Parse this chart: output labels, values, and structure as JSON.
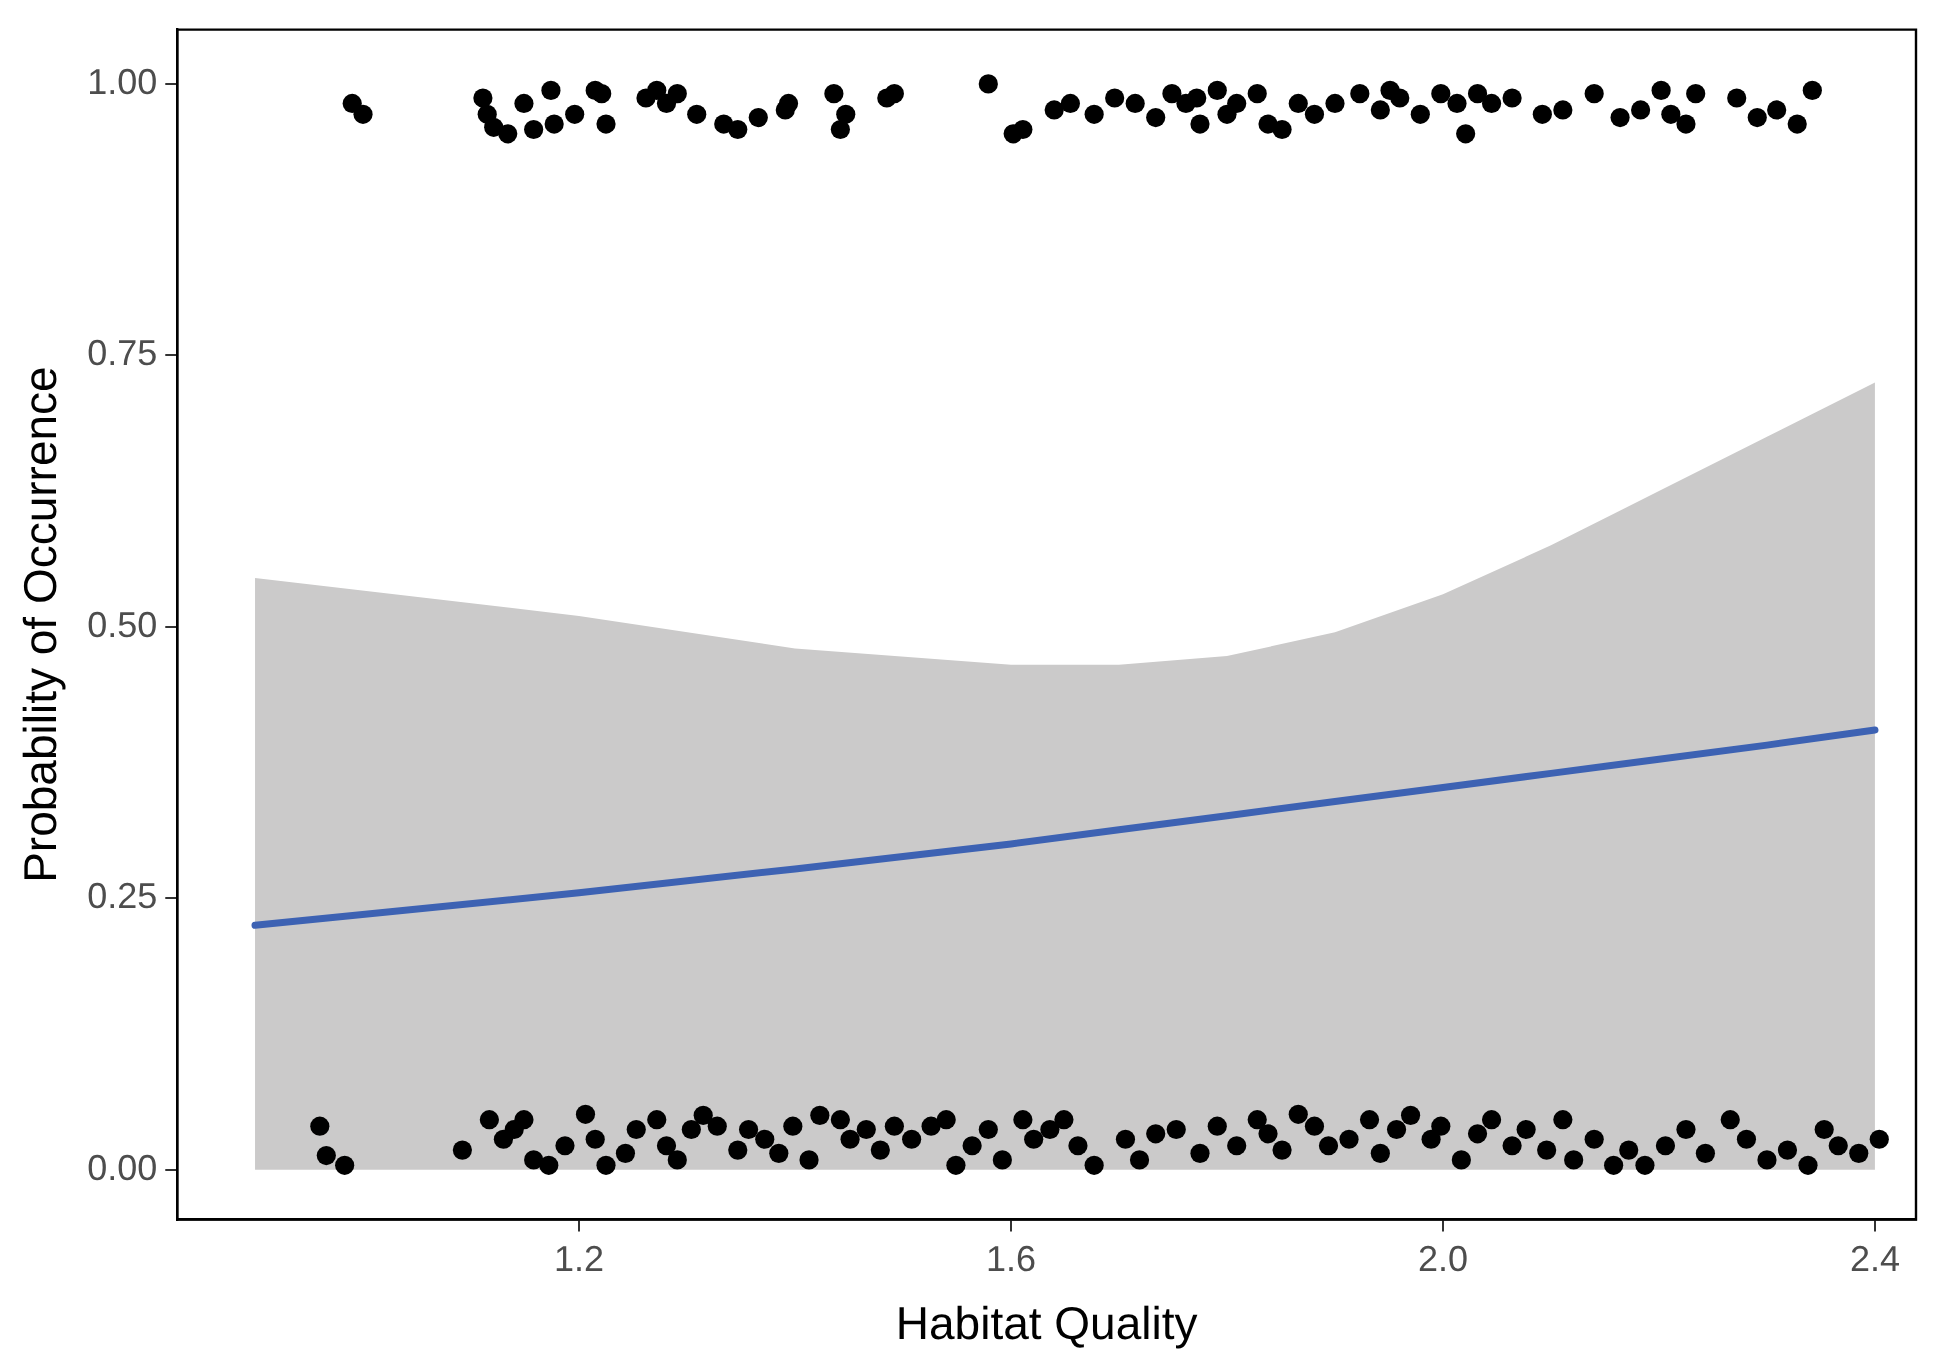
{
  "chart_data": {
    "type": "scatter",
    "xlabel": "Habitat Quality",
    "ylabel": "Probability of Occurrence",
    "xlim": [
      0.828,
      2.438
    ],
    "ylim": [
      -0.046,
      1.05
    ],
    "xticks": [
      {
        "value": 1.2,
        "label": "1.2"
      },
      {
        "value": 1.6,
        "label": "1.6"
      },
      {
        "value": 2.0,
        "label": "2.0"
      },
      {
        "value": 2.4,
        "label": "2.4"
      }
    ],
    "yticks": [
      {
        "value": 0,
        "label": "0.00"
      },
      {
        "value": 0.25,
        "label": "0.25"
      },
      {
        "value": 0.5,
        "label": "0.50"
      },
      {
        "value": 0.75,
        "label": "0.75"
      },
      {
        "value": 1,
        "label": "1.00"
      }
    ],
    "grid": false,
    "legend": false,
    "marker": "circle",
    "series": [
      {
        "type": "line",
        "color": "#3d62b3",
        "marker": "none",
        "line_style": "solid",
        "x": [
          0.9,
          1.2,
          1.4,
          1.6,
          1.7,
          1.8,
          1.9,
          2.0,
          2.1,
          2.2,
          2.3,
          2.4
        ],
        "values": [
          0.225,
          0.255,
          0.277,
          0.3,
          0.313,
          0.326,
          0.339,
          0.352,
          0.365,
          0.378,
          0.391,
          0.405
        ],
        "lower": [
          0,
          0,
          0,
          0,
          0,
          0,
          0,
          0,
          0,
          0,
          0,
          0
        ],
        "upper": [
          0.545,
          0.51,
          0.48,
          0.465,
          0.465,
          0.473,
          0.495,
          0.53,
          0.575,
          0.625,
          0.675,
          0.725
        ]
      },
      {
        "color": "#000000",
        "x": [
          0.99,
          1.0,
          1.111,
          1.115,
          1.121,
          1.134,
          1.149,
          1.158,
          1.174,
          1.177,
          1.196,
          1.215,
          1.221,
          1.225,
          1.262,
          1.272,
          1.281,
          1.291,
          1.309,
          1.334,
          1.347,
          1.366,
          1.391,
          1.394,
          1.436,
          1.442,
          1.447,
          1.485,
          1.492,
          1.579,
          1.602,
          1.611,
          1.64,
          1.655,
          1.677,
          1.696,
          1.715,
          1.734,
          1.749,
          1.762,
          1.772,
          1.775,
          1.791,
          1.8,
          1.809,
          1.828,
          1.838,
          1.851,
          1.866,
          1.881,
          1.9,
          1.923,
          1.942,
          1.951,
          1.96,
          1.979,
          1.998,
          2.013,
          2.021,
          2.032,
          2.045,
          2.064,
          2.092,
          2.111,
          2.14,
          2.164,
          2.183,
          2.202,
          2.211,
          2.225,
          2.234,
          2.272,
          2.291,
          2.309,
          2.328,
          2.342,
          0.96,
          0.966,
          0.983,
          1.092,
          1.117,
          1.13,
          1.14,
          1.149,
          1.158,
          1.172,
          1.187,
          1.206,
          1.215,
          1.225,
          1.243,
          1.253,
          1.272,
          1.281,
          1.291,
          1.304,
          1.315,
          1.328,
          1.347,
          1.357,
          1.372,
          1.385,
          1.398,
          1.413,
          1.423,
          1.442,
          1.451,
          1.466,
          1.479,
          1.492,
          1.508,
          1.526,
          1.54,
          1.549,
          1.564,
          1.579,
          1.592,
          1.611,
          1.621,
          1.636,
          1.649,
          1.662,
          1.677,
          1.706,
          1.719,
          1.734,
          1.753,
          1.775,
          1.791,
          1.809,
          1.828,
          1.838,
          1.851,
          1.866,
          1.881,
          1.894,
          1.913,
          1.932,
          1.942,
          1.957,
          1.97,
          1.989,
          1.998,
          2.017,
          2.032,
          2.045,
          2.064,
          2.077,
          2.096,
          2.111,
          2.121,
          2.14,
          2.158,
          2.172,
          2.187,
          2.206,
          2.225,
          2.243,
          2.266,
          2.281,
          2.3,
          2.319,
          2.338,
          2.353,
          2.366,
          2.385,
          2.404
        ],
        "values": [
          0.982,
          0.972,
          0.987,
          0.972,
          0.96,
          0.954,
          0.982,
          0.958,
          0.994,
          0.963,
          0.972,
          0.994,
          0.991,
          0.963,
          0.987,
          0.994,
          0.982,
          0.991,
          0.972,
          0.963,
          0.958,
          0.969,
          0.976,
          0.982,
          0.991,
          0.958,
          0.972,
          0.987,
          0.991,
          1.0,
          0.954,
          0.958,
          0.976,
          0.982,
          0.972,
          0.987,
          0.982,
          0.969,
          0.991,
          0.982,
          0.987,
          0.963,
          0.994,
          0.972,
          0.982,
          0.991,
          0.963,
          0.958,
          0.982,
          0.972,
          0.982,
          0.991,
          0.976,
          0.994,
          0.987,
          0.972,
          0.991,
          0.982,
          0.954,
          0.991,
          0.982,
          0.987,
          0.972,
          0.976,
          0.991,
          0.969,
          0.976,
          0.994,
          0.972,
          0.963,
          0.991,
          0.987,
          0.969,
          0.976,
          0.963,
          0.994,
          0.04,
          0.013,
          0.004,
          0.018,
          0.046,
          0.028,
          0.037,
          0.046,
          0.009,
          0.004,
          0.022,
          0.051,
          0.028,
          0.004,
          0.015,
          0.037,
          0.046,
          0.022,
          0.009,
          0.037,
          0.05,
          0.04,
          0.018,
          0.037,
          0.028,
          0.015,
          0.04,
          0.009,
          0.05,
          0.046,
          0.028,
          0.037,
          0.018,
          0.04,
          0.028,
          0.04,
          0.046,
          0.004,
          0.022,
          0.037,
          0.009,
          0.046,
          0.028,
          0.037,
          0.046,
          0.022,
          0.004,
          0.028,
          0.009,
          0.033,
          0.037,
          0.015,
          0.04,
          0.022,
          0.046,
          0.033,
          0.018,
          0.051,
          0.04,
          0.022,
          0.028,
          0.046,
          0.015,
          0.037,
          0.05,
          0.028,
          0.04,
          0.009,
          0.033,
          0.046,
          0.022,
          0.037,
          0.018,
          0.046,
          0.009,
          0.028,
          0.004,
          0.018,
          0.004,
          0.022,
          0.037,
          0.015,
          0.046,
          0.028,
          0.009,
          0.018,
          0.004,
          0.037,
          0.022,
          0.015,
          0.028
        ]
      }
    ]
  }
}
